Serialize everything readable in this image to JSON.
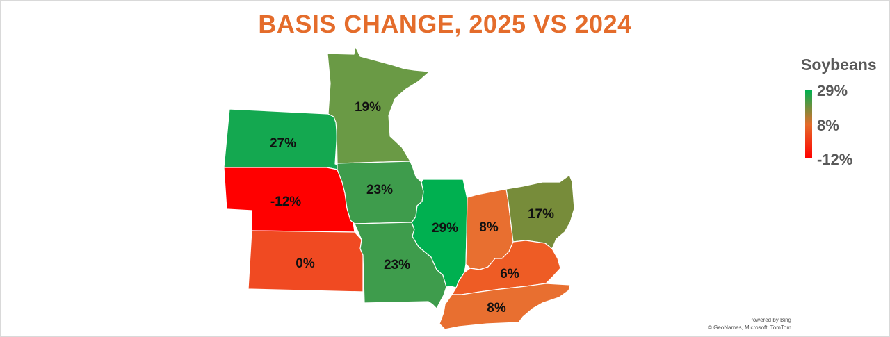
{
  "title": "BASIS CHANGE, 2025 VS 2024",
  "legend": {
    "title": "Soybeans",
    "max_label": "29%",
    "mid_label": "8%",
    "min_label": "-12%",
    "colors": {
      "high": "#00B050",
      "mid": "#E46C2B",
      "low": "#FF0000"
    }
  },
  "states": [
    {
      "id": "minnesota",
      "label": "19%",
      "value": 19,
      "color": "#6A9A45"
    },
    {
      "id": "south-dakota",
      "label": "27%",
      "value": 27,
      "color": "#14A850"
    },
    {
      "id": "nebraska",
      "label": "-12%",
      "value": -12,
      "color": "#FF0000"
    },
    {
      "id": "kansas",
      "label": "0%",
      "value": 0,
      "color": "#F04A22"
    },
    {
      "id": "iowa",
      "label": "23%",
      "value": 23,
      "color": "#3E9C4C"
    },
    {
      "id": "missouri",
      "label": "23%",
      "value": 23,
      "color": "#3E9C4C"
    },
    {
      "id": "illinois",
      "label": "29%",
      "value": 29,
      "color": "#00B050"
    },
    {
      "id": "indiana",
      "label": "8%",
      "value": 8,
      "color": "#E86F30"
    },
    {
      "id": "ohio",
      "label": "17%",
      "value": 17,
      "color": "#778C3A"
    },
    {
      "id": "kentucky",
      "label": "6%",
      "value": 6,
      "color": "#EE5C25"
    },
    {
      "id": "tennessee",
      "label": "8%",
      "value": 8,
      "color": "#E86F30"
    }
  ],
  "credit": {
    "line1": "Powered by Bing",
    "line2": "© GeoNames, Microsoft, TomTom"
  }
}
